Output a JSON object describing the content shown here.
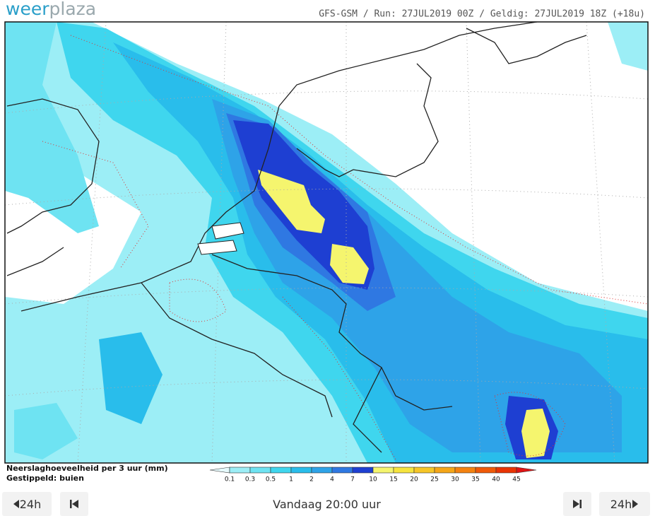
{
  "logo": [
    "weer",
    "plaza"
  ],
  "header": "GFS-GSM / Run: 27JUL2019 00Z / Geldig: 27JUL2019 18Z (+18u)",
  "legend": {
    "title": "Neerslaghoeveelheid per 3 uur (mm)",
    "subtitle": "Gestippeld: buien",
    "levels": [
      0.1,
      0.3,
      0.5,
      1,
      2,
      4,
      7,
      10,
      15,
      20,
      25,
      30,
      35,
      40,
      45
    ],
    "colors": [
      "#e6fafc",
      "#9ceef6",
      "#6ee3f2",
      "#3fd6ee",
      "#29bdeb",
      "#2ea3e8",
      "#2f78e2",
      "#1e3fd2",
      "#f5f56e",
      "#f6e43e",
      "#f6c628",
      "#f5a618",
      "#f48210",
      "#f05a08",
      "#e93404",
      "#e01414"
    ]
  },
  "controls": {
    "back": "24h",
    "time": "Vandaag 20:00 uur",
    "forward": "24h"
  }
}
